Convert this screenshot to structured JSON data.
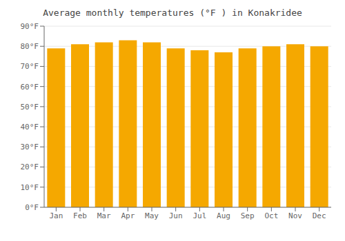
{
  "chart_data": {
    "type": "bar",
    "title": "Average monthly temperatures (°F ) in Konakridee",
    "categories": [
      "Jan",
      "Feb",
      "Mar",
      "Apr",
      "May",
      "Jun",
      "Jul",
      "Aug",
      "Sep",
      "Oct",
      "Nov",
      "Dec"
    ],
    "values": [
      79,
      81,
      82,
      83,
      82,
      79,
      78,
      77,
      79,
      80,
      81,
      80
    ],
    "color": "#F5A800",
    "ylim": [
      0,
      90
    ],
    "yticks": [
      {
        "value": 0,
        "label": "0°F"
      },
      {
        "value": 10,
        "label": "10°F"
      },
      {
        "value": 20,
        "label": "20°F"
      },
      {
        "value": 30,
        "label": "30°F"
      },
      {
        "value": 40,
        "label": "40°F"
      },
      {
        "value": 50,
        "label": "50°F"
      },
      {
        "value": 60,
        "label": "60°F"
      },
      {
        "value": 70,
        "label": "70°F"
      },
      {
        "value": 80,
        "label": "80°F"
      },
      {
        "value": 90,
        "label": "90°F"
      }
    ],
    "grid": true
  }
}
